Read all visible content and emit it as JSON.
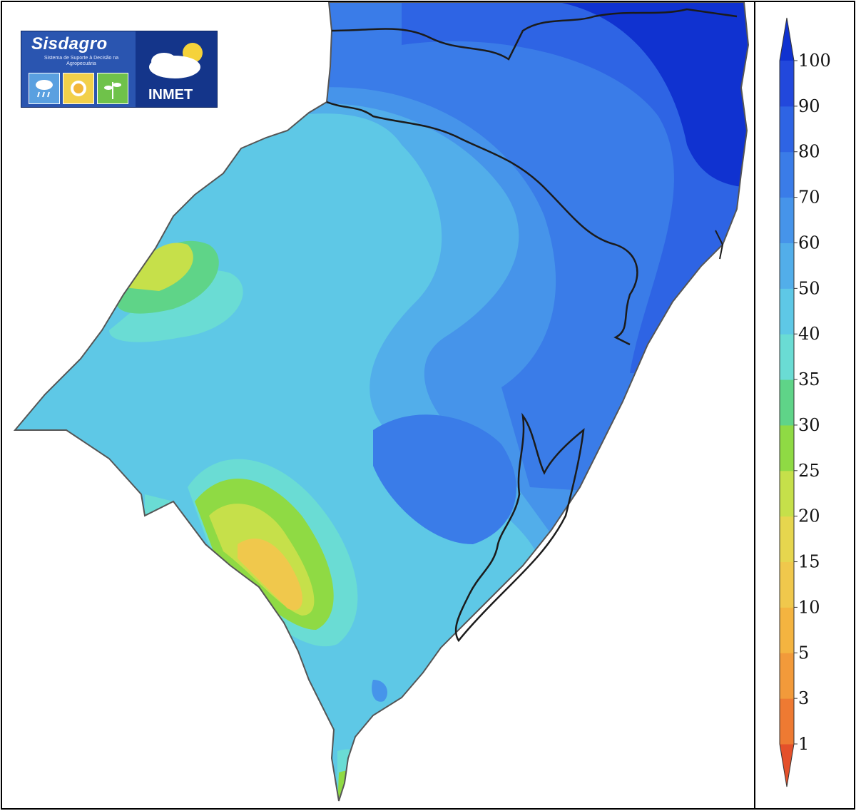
{
  "logo": {
    "title": "Sisdagro",
    "subtitle": "Sistema de Suporte à Decisão na Agropecuária",
    "agency": "INMET",
    "tiles": [
      {
        "icon": "rain-cloud-icon",
        "color": "#5aa0e0"
      },
      {
        "icon": "sun-icon",
        "color": "#f2d04a"
      },
      {
        "icon": "plant-icon",
        "color": "#6fc24a"
      }
    ]
  },
  "legend": {
    "levels": [
      "1",
      "3",
      "5",
      "10",
      "15",
      "20",
      "25",
      "30",
      "35",
      "40",
      "50",
      "60",
      "70",
      "80",
      "90",
      "100"
    ],
    "colors": [
      "#e4502a",
      "#ee7a32",
      "#f29a3a",
      "#f4b440",
      "#f0c84c",
      "#e6d64e",
      "#c6e04a",
      "#8fda44",
      "#5fd488",
      "#6adcd4",
      "#5ec8e6",
      "#52aeea",
      "#4694ea",
      "#3a7ce8",
      "#2e64e4",
      "#2248dc",
      "#1032d0"
    ]
  },
  "map": {
    "ocean": "#ffffff",
    "border": "#1b1b1b"
  }
}
